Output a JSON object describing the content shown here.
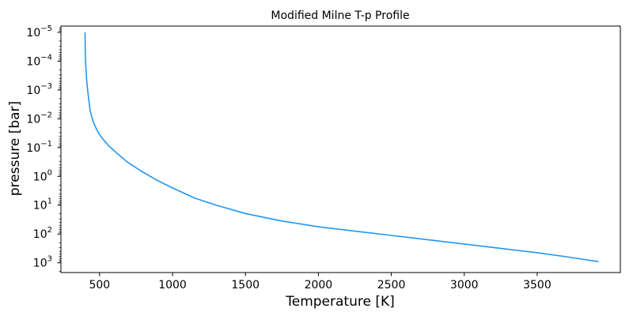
{
  "chart_data": {
    "type": "line",
    "title": "Modified Milne T-p Profile",
    "xlabel": "Temperature [K]",
    "ylabel": "pressure [bar]",
    "x_ticks": [
      500,
      1000,
      1500,
      2000,
      2500,
      3000,
      3500
    ],
    "xlim": [
      235,
      4070
    ],
    "y_scale": "log",
    "y_inverted": true,
    "ylim": [
      6.03e-06,
      2180
    ],
    "y_ticks": [
      {
        "exp": -5,
        "label_base": "10",
        "label_exp": "−5"
      },
      {
        "exp": -4,
        "label_base": "10",
        "label_exp": "−4"
      },
      {
        "exp": -3,
        "label_base": "10",
        "label_exp": "−3"
      },
      {
        "exp": -2,
        "label_base": "10",
        "label_exp": "−2"
      },
      {
        "exp": -1,
        "label_base": "10",
        "label_exp": "−1"
      },
      {
        "exp": 0,
        "label_base": "10",
        "label_exp": "0"
      },
      {
        "exp": 1,
        "label_base": "10",
        "label_exp": "1"
      },
      {
        "exp": 2,
        "label_base": "10",
        "label_exp": "2"
      },
      {
        "exp": 3,
        "label_base": "10",
        "label_exp": "3"
      }
    ],
    "grid": false,
    "line_color": "#2196f3",
    "series": [
      {
        "x": [
          400,
          401,
          402,
          404,
          407,
          412,
          418,
          425,
          435,
          447,
          460,
          478,
          500,
          530,
          565,
          620,
          690,
          780,
          900,
          1000,
          1150,
          1300,
          1500,
          1750,
          2000,
          2250,
          2500,
          2750,
          3000,
          3250,
          3500,
          3700,
          3920
        ],
        "y": [
          1e-05,
          2e-05,
          5e-05,
          0.0001,
          0.0002,
          0.0005,
          0.001,
          0.002,
          0.005,
          0.0089,
          0.0141,
          0.0224,
          0.0355,
          0.0562,
          0.089,
          0.158,
          0.3162,
          0.631,
          1.413,
          2.512,
          5.62,
          10,
          19.5,
          35.5,
          56.2,
          79.4,
          112,
          158,
          224,
          316,
          447,
          617,
          912
        ]
      }
    ]
  }
}
